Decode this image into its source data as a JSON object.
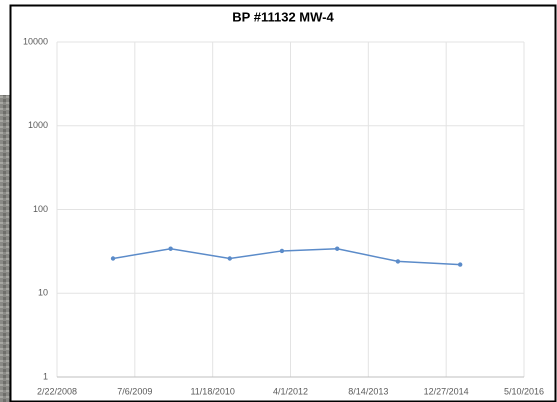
{
  "chart_data": {
    "type": "line",
    "title": "BP #11132 MW-4",
    "x": [
      39860,
      40230,
      40610,
      40945,
      41300,
      41690,
      42090
    ],
    "series": [
      {
        "name": "MW-4",
        "color": "#5b8bc9",
        "values": [
          26,
          34,
          26,
          32,
          34,
          24,
          22
        ]
      }
    ],
    "xlim": [
      39500,
      42500
    ],
    "xticks": [
      {
        "value": 39500,
        "label": "2/22/2008"
      },
      {
        "value": 40000,
        "label": "7/6/2009"
      },
      {
        "value": 40500,
        "label": "11/18/2010"
      },
      {
        "value": 41000,
        "label": "4/1/2012"
      },
      {
        "value": 41500,
        "label": "8/14/2013"
      },
      {
        "value": 42000,
        "label": "12/27/2014"
      },
      {
        "value": 42500,
        "label": "5/10/2016"
      }
    ],
    "ylim": [
      1,
      10000
    ],
    "yticks": [
      1,
      10,
      100,
      1000,
      10000
    ],
    "ylog": true,
    "grid": true
  }
}
